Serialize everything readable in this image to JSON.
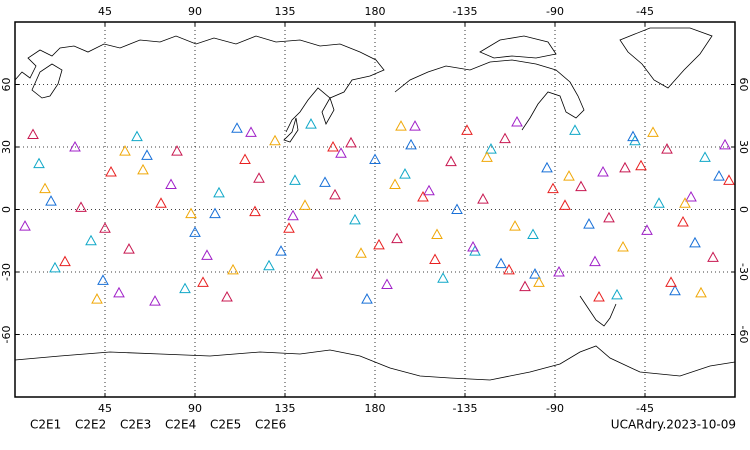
{
  "chart_data": {
    "type": "scatter",
    "annotation": "UCARdry.2023-10-09",
    "xlim": [
      0,
      360
    ],
    "xticks": [
      45,
      90,
      135,
      180,
      {
        "value": 225,
        "label": "-135"
      },
      {
        "value": 270,
        "label": "-90"
      },
      {
        "value": 315,
        "label": "-45"
      }
    ],
    "ylim": [
      -90,
      90
    ],
    "yticks": [
      -60,
      -30,
      0,
      30,
      60
    ],
    "grid": true,
    "series": [
      {
        "name": "C2E1",
        "color": "#10a8c8",
        "x": [
          12,
          38,
          61,
          85,
          102,
          127,
          148,
          170,
          195,
          214,
          238,
          259,
          280,
          301,
          322,
          345,
          20,
          140,
          230,
          310
        ],
        "values": [
          22,
          -15,
          35,
          -38,
          8,
          -27,
          41,
          -5,
          17,
          -33,
          29,
          -12,
          38,
          -41,
          3,
          25,
          -28,
          14,
          -20,
          33
        ]
      },
      {
        "name": "C2E2",
        "color": "#a020c8",
        "x": [
          5,
          30,
          52,
          78,
          96,
          118,
          139,
          163,
          186,
          207,
          229,
          251,
          272,
          294,
          316,
          338,
          355,
          70,
          200,
          290
        ],
        "values": [
          -8,
          30,
          -40,
          12,
          -22,
          37,
          -3,
          27,
          -36,
          9,
          -18,
          42,
          -30,
          18,
          -10,
          6,
          31,
          -44,
          40,
          -25
        ]
      },
      {
        "name": "C2E3",
        "color": "#1870d8",
        "x": [
          18,
          44,
          66,
          90,
          111,
          133,
          155,
          176,
          198,
          221,
          243,
          266,
          287,
          309,
          330,
          352,
          100,
          180,
          260,
          340
        ],
        "values": [
          4,
          -34,
          26,
          -11,
          39,
          -20,
          13,
          -43,
          31,
          0,
          -26,
          20,
          -7,
          35,
          -39,
          16,
          -2,
          24,
          -31,
          -16
        ]
      },
      {
        "name": "C2E4",
        "color": "#c81850",
        "x": [
          9,
          33,
          57,
          81,
          106,
          122,
          151,
          168,
          191,
          218,
          234,
          255,
          283,
          297,
          326,
          349,
          45,
          160,
          245,
          305
        ],
        "values": [
          36,
          1,
          -19,
          28,
          -42,
          15,
          -31,
          32,
          -14,
          23,
          5,
          -37,
          11,
          -4,
          29,
          -23,
          -9,
          7,
          34,
          20
        ]
      },
      {
        "name": "C2E5",
        "color": "#e82020",
        "x": [
          25,
          48,
          73,
          94,
          115,
          137,
          159,
          182,
          204,
          226,
          247,
          269,
          292,
          313,
          334,
          357,
          120,
          210,
          275,
          328
        ],
        "values": [
          -25,
          18,
          3,
          -35,
          24,
          -9,
          30,
          -17,
          6,
          38,
          -29,
          10,
          -42,
          21,
          -6,
          14,
          -1,
          -24,
          2,
          -35
        ]
      },
      {
        "name": "C2E6",
        "color": "#f0a808",
        "x": [
          15,
          41,
          64,
          88,
          109,
          130,
          145,
          173,
          193,
          211,
          236,
          262,
          277,
          304,
          319,
          343,
          55,
          190,
          250,
          335
        ],
        "values": [
          10,
          -43,
          19,
          -2,
          -29,
          33,
          2,
          -21,
          40,
          -12,
          25,
          -35,
          16,
          -18,
          37,
          -40,
          28,
          12,
          -8,
          3
        ]
      }
    ]
  }
}
